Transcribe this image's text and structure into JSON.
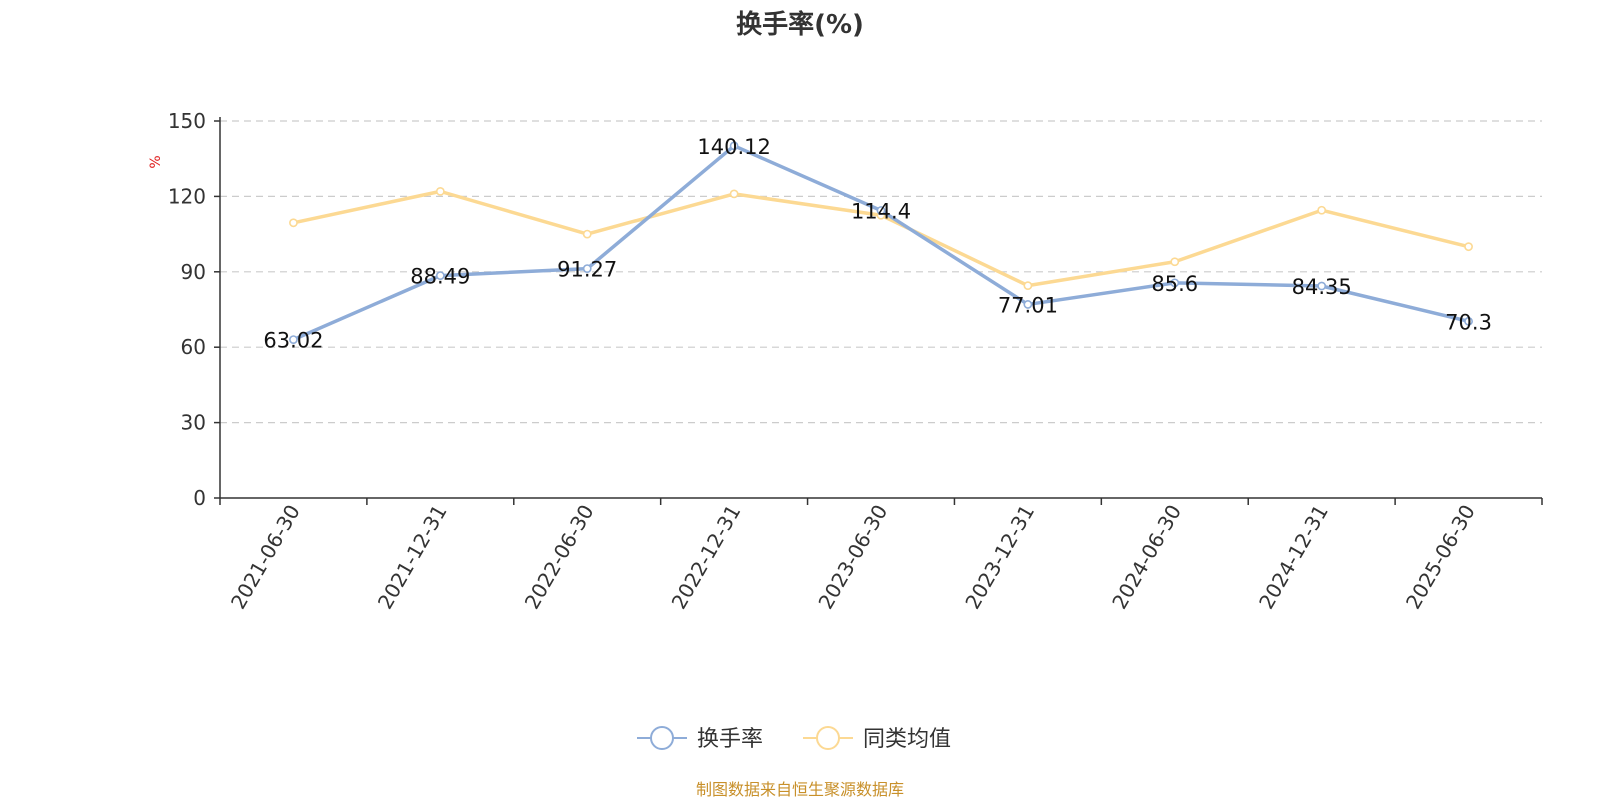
{
  "chart_data": {
    "type": "line",
    "title": "换手率(%)",
    "ylabel": "%",
    "ylim": [
      0,
      150
    ],
    "yticks": [
      0,
      30,
      60,
      90,
      120,
      150
    ],
    "grid": true,
    "legend_position": "bottom-center",
    "categories": [
      "2021-06-30",
      "2021-12-31",
      "2022-06-30",
      "2022-12-31",
      "2023-06-30",
      "2023-12-31",
      "2024-06-30",
      "2024-12-31",
      "2025-06-30"
    ],
    "series": [
      {
        "name": "换手率",
        "color": "#8eacd8",
        "values": [
          63.02,
          88.49,
          91.27,
          140.12,
          114.4,
          77.01,
          85.6,
          84.35,
          70.3
        ],
        "labels": [
          "63.02",
          "88.49",
          "91.27",
          "140.12",
          "114.4",
          "77.01",
          "85.6",
          "84.35",
          "70.3"
        ]
      },
      {
        "name": "同类均值",
        "color": "#fcd993",
        "values": [
          109.5,
          122,
          105,
          121,
          112.5,
          84.5,
          94,
          114.5,
          100
        ]
      }
    ]
  },
  "source_note": "制图数据来自恒生聚源数据库"
}
